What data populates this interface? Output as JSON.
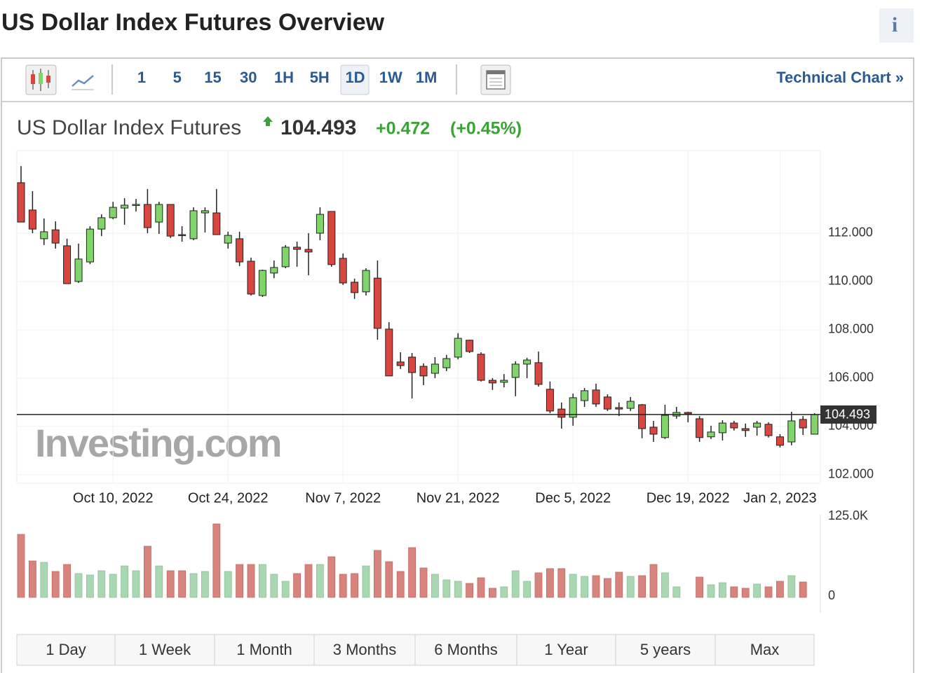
{
  "page": {
    "title": "US Dollar Index Futures Overview",
    "intervals": [
      "1",
      "5",
      "15",
      "30",
      "1H",
      "5H",
      "1D",
      "1W",
      "1M"
    ],
    "technical_chart": "Technical Chart »",
    "quote": {
      "name": "US Dollar Index Futures",
      "change": "+0.472",
      "change_pct": "(+0.45%)"
    },
    "watermark": "Investing.com",
    "ranges": [
      "1 Day",
      "1 Week",
      "1 Month",
      "3 Months",
      "6 Months",
      "1 Year",
      "5 years",
      "Max"
    ]
  },
  "chart_data": {
    "type": "candlestick",
    "categories": [
      null,
      null,
      null,
      null,
      null,
      null,
      null,
      null,
      "Oct 10, 2022",
      null,
      null,
      null,
      null,
      null,
      null,
      null,
      null,
      null,
      "Oct 24, 2022",
      null,
      null,
      null,
      null,
      null,
      null,
      null,
      null,
      null,
      "Nov 7, 2022",
      null,
      null,
      null,
      null,
      null,
      null,
      null,
      null,
      null,
      "Nov 21, 2022",
      null,
      null,
      null,
      null,
      null,
      null,
      null,
      null,
      null,
      "Dec 5, 2022",
      null,
      null,
      null,
      null,
      null,
      null,
      null,
      null,
      null,
      "Dec 19, 2022",
      null,
      null,
      null,
      null,
      null,
      null,
      null,
      "Jan 2, 2023",
      null,
      null,
      null
    ],
    "open": [
      114.09,
      112.96,
      111.77,
      112.14,
      111.48,
      110.0,
      110.81,
      112.17,
      112.64,
      113.04,
      113.16,
      113.19,
      112.46,
      113.19,
      111.94,
      111.77,
      112.84,
      112.84,
      111.59,
      111.77,
      110.84,
      109.42,
      110.35,
      110.61,
      111.42,
      111.33,
      112.0,
      112.9,
      110.96,
      109.97,
      109.57,
      110.14,
      108.03,
      106.67,
      106.87,
      106.49,
      106.2,
      106.43,
      106.87,
      107.57,
      106.99,
      105.91,
      105.83,
      106.03,
      106.58,
      106.64,
      105.54,
      104.72,
      104.38,
      105.07,
      105.51,
      105.22,
      104.78,
      104.75,
      104.9,
      103.97,
      103.54,
      104.43,
      104.58,
      104.32,
      103.57,
      103.74,
      104.14,
      103.91,
      103.97,
      104.09,
      103.57,
      103.36,
      104.29,
      103.68
    ],
    "high": [
      114.78,
      113.74,
      112.61,
      112.49,
      111.77,
      111.57,
      112.29,
      112.78,
      113.3,
      113.45,
      113.42,
      113.83,
      113.3,
      113.19,
      112.29,
      113.07,
      113.07,
      113.83,
      112.06,
      112.06,
      110.99,
      110.49,
      110.87,
      111.51,
      111.65,
      112.0,
      113.07,
      112.9,
      111.16,
      110.12,
      110.55,
      110.87,
      108.32,
      107.07,
      107.04,
      106.61,
      106.87,
      106.96,
      107.86,
      107.59,
      107.07,
      106.0,
      106.17,
      106.7,
      106.84,
      107.1,
      105.86,
      104.99,
      105.36,
      105.59,
      105.77,
      105.33,
      104.99,
      105.22,
      104.93,
      104.23,
      104.9,
      104.81,
      104.61,
      104.43,
      104.03,
      104.26,
      104.23,
      104.12,
      104.23,
      104.17,
      103.68,
      104.61,
      104.43,
      104.55
    ],
    "low": [
      112.46,
      112.0,
      111.51,
      111.36,
      109.91,
      109.94,
      110.72,
      111.88,
      112.58,
      112.35,
      112.9,
      112.0,
      111.97,
      111.8,
      111.65,
      111.71,
      112.03,
      111.94,
      111.36,
      110.64,
      109.42,
      109.36,
      110.14,
      110.55,
      110.61,
      110.26,
      111.71,
      110.61,
      109.86,
      109.28,
      109.42,
      107.59,
      106.09,
      106.38,
      105.16,
      105.71,
      106.0,
      106.29,
      106.78,
      107.04,
      105.86,
      105.51,
      105.62,
      105.25,
      106.0,
      105.65,
      104.55,
      103.91,
      104.03,
      104.81,
      104.81,
      104.64,
      104.43,
      104.64,
      103.51,
      103.36,
      103.48,
      104.32,
      104.17,
      103.36,
      103.48,
      103.42,
      103.83,
      103.57,
      103.62,
      103.54,
      103.13,
      103.22,
      103.65,
      103.68
    ],
    "close": [
      112.46,
      112.17,
      112.06,
      111.59,
      109.91,
      110.93,
      112.17,
      112.64,
      113.07,
      113.16,
      113.19,
      112.23,
      113.19,
      111.88,
      111.91,
      112.93,
      112.93,
      111.94,
      111.91,
      110.81,
      109.48,
      110.46,
      110.58,
      111.42,
      111.33,
      111.22,
      112.78,
      110.7,
      109.94,
      109.54,
      110.46,
      108.06,
      106.09,
      106.52,
      106.23,
      106.09,
      106.58,
      106.81,
      107.65,
      107.1,
      105.91,
      105.8,
      105.91,
      106.58,
      106.75,
      105.74,
      104.64,
      104.38,
      105.19,
      105.48,
      104.93,
      104.72,
      104.72,
      105.04,
      103.91,
      103.68,
      104.46,
      104.58,
      104.52,
      103.54,
      103.77,
      104.14,
      103.94,
      103.83,
      104.14,
      103.62,
      103.22,
      104.23,
      103.94,
      104.493
    ],
    "last_price": 104.493,
    "up_color": "#7fd46a",
    "down_color": "#d9453f",
    "ylim": [
      101.65,
      115.42
    ],
    "yticks": [
      {
        "value": 102,
        "label": "102.000"
      },
      {
        "value": 104,
        "label": "104.000"
      },
      {
        "value": 106,
        "label": "106.000"
      },
      {
        "value": 108,
        "label": "108.000"
      },
      {
        "value": 110,
        "label": "110.000"
      },
      {
        "value": 112,
        "label": "112.000"
      }
    ],
    "grid": true,
    "volume": {
      "values": [
        96.5,
        54.8,
        52.6,
        38.4,
        49.3,
        35.1,
        32.9,
        39.5,
        34.0,
        47.1,
        39.5,
        77.9,
        47.1,
        39.5,
        39.5,
        35.1,
        38.4,
        112.9,
        38.4,
        49.3,
        49.3,
        49.3,
        34.0,
        23.0,
        35.1,
        49.3,
        49.3,
        61.4,
        34.0,
        35.1,
        47.1,
        71.3,
        53.7,
        38.4,
        75.7,
        43.9,
        34.0,
        25.2,
        23.0,
        19.7,
        28.5,
        12.1,
        14.3,
        39.5,
        23.0,
        36.2,
        42.8,
        42.8,
        34.0,
        30.7,
        31.8,
        27.4,
        37.3,
        30.7,
        31.8,
        49.3,
        36.2,
        14.3,
        null,
        29.6,
        17.5,
        20.8,
        14.3,
        12.1,
        18.6,
        14.3,
        23.0,
        31.8,
        21.9,
        null
      ],
      "up_color": "#a9d7b1",
      "down_color": "#d8847e",
      "ylim": [
        0,
        132.7
      ],
      "yticks": [
        0,
        {
          "value": 125,
          "label": "125.0K"
        }
      ]
    }
  }
}
